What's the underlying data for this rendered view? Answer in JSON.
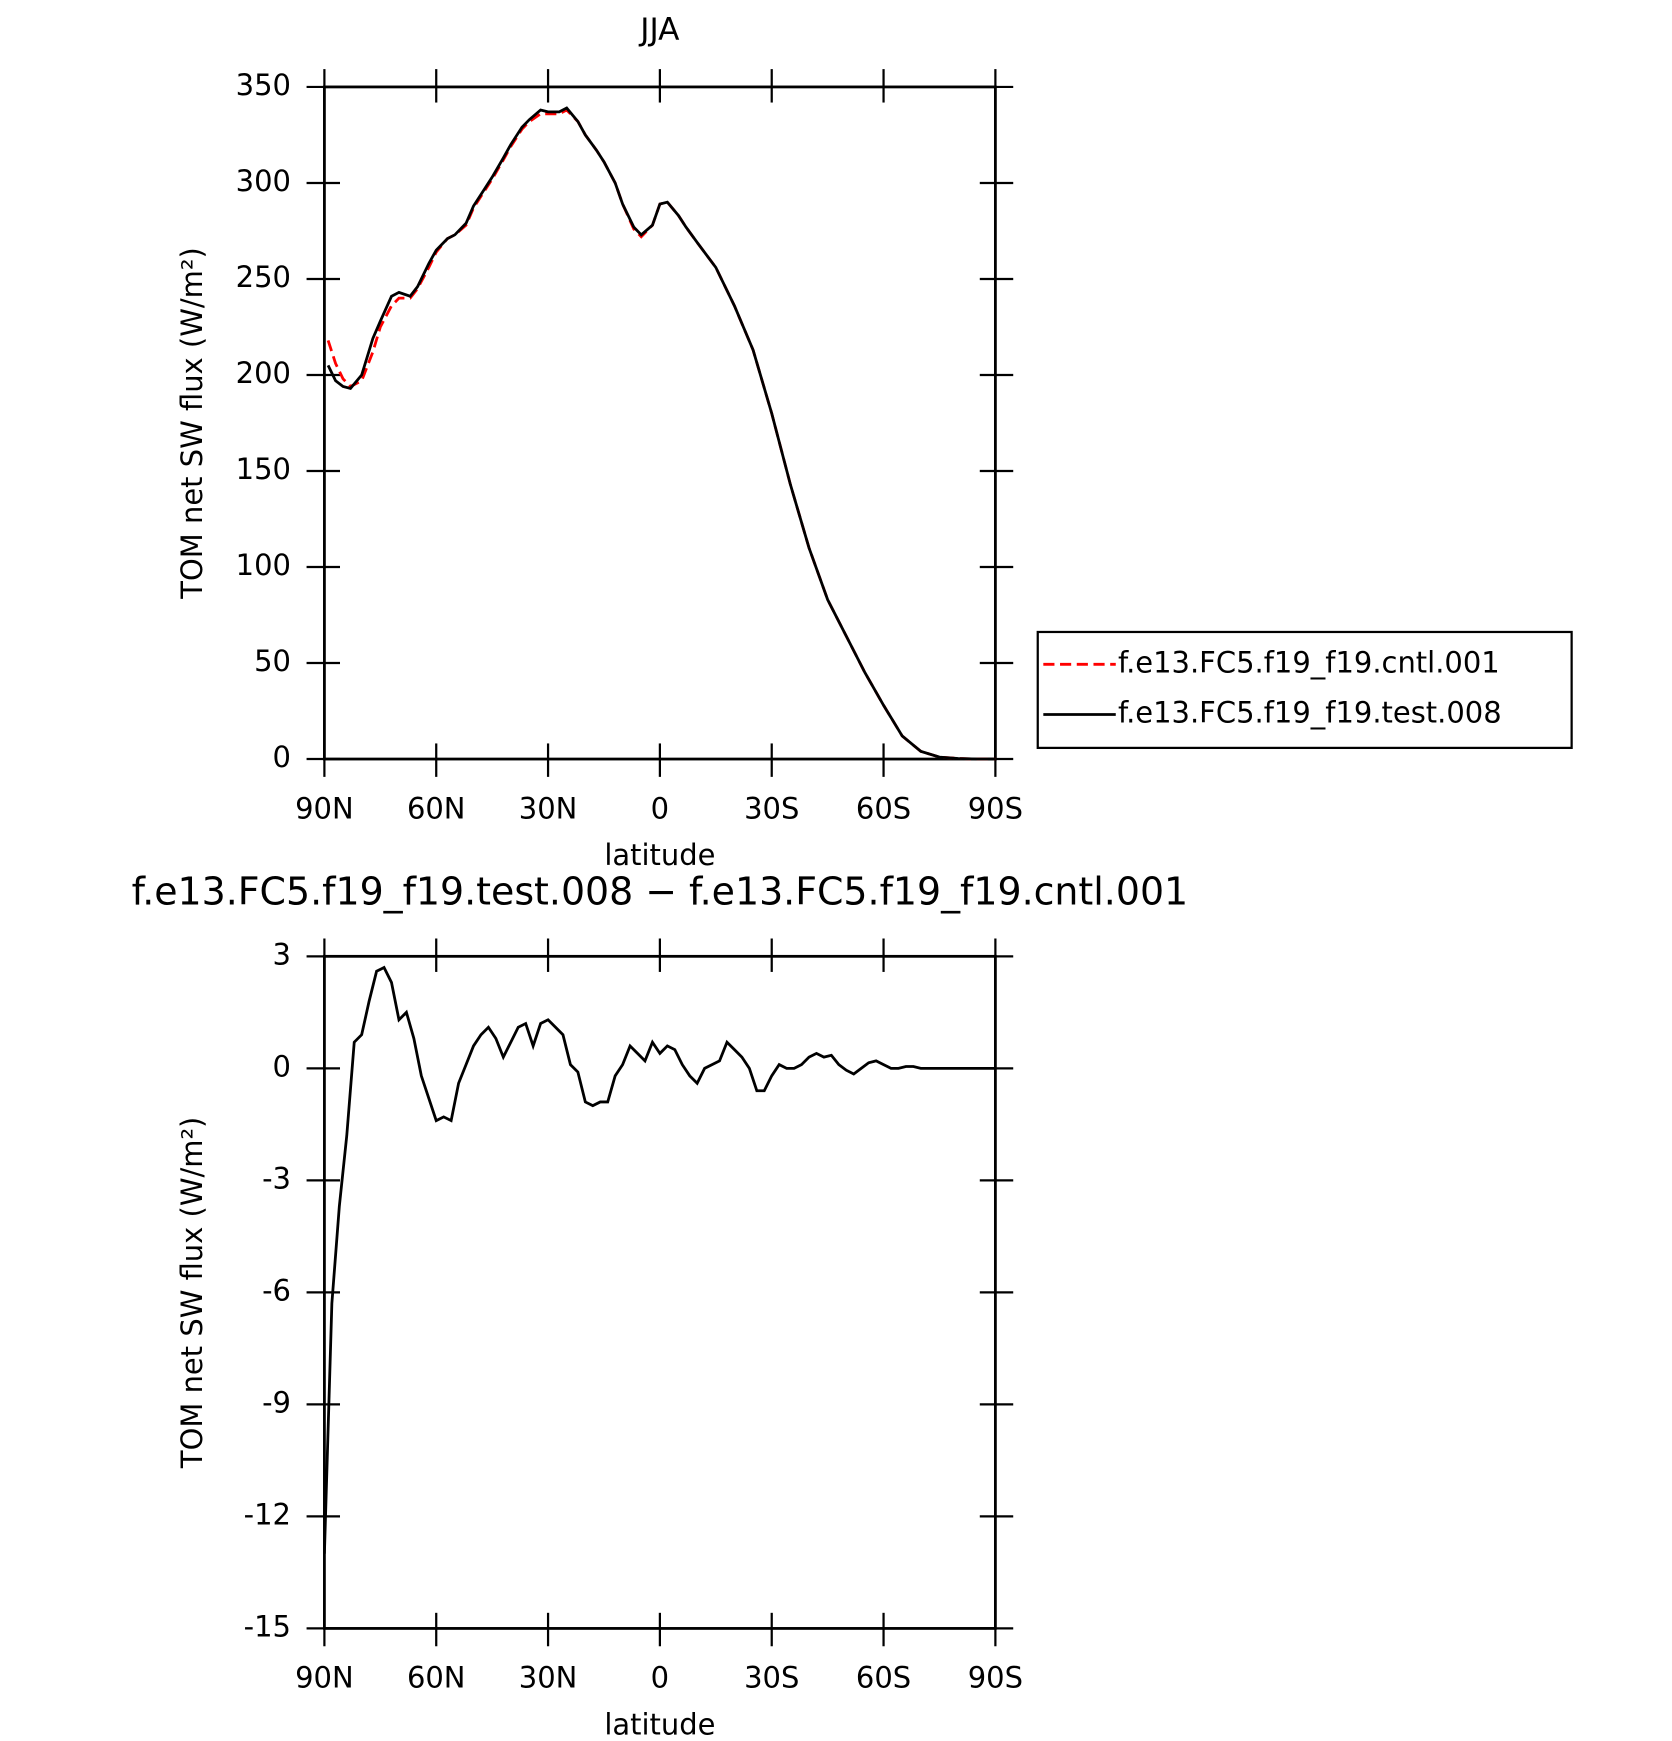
{
  "chart_data": [
    {
      "type": "line",
      "title": "JJA",
      "xlabel": "latitude",
      "ylabel": "TOM net SW flux (W/m²)",
      "x": [
        89,
        87,
        85,
        83,
        80,
        77,
        75,
        72,
        70,
        67,
        65,
        62,
        60,
        57,
        55,
        52,
        50,
        47,
        45,
        42,
        40,
        37,
        35,
        32,
        30,
        27,
        25,
        22,
        20,
        17,
        15,
        12,
        10,
        7,
        5,
        2,
        0,
        -2,
        -5,
        -7,
        -10,
        -15,
        -20,
        -25,
        -30,
        -35,
        -40,
        -45,
        -50,
        -55,
        -60,
        -65,
        -70,
        -75,
        -80,
        -85,
        -90
      ],
      "series": [
        {
          "name": "f.e13.FC5.f19_f19.cntl.001",
          "color": "#ff0000",
          "dash": "dashed",
          "values": [
            218,
            206,
            198,
            194,
            197,
            212,
            225,
            236,
            240,
            240,
            245,
            256,
            264,
            271,
            273,
            278,
            287,
            296,
            302,
            312,
            319,
            328,
            332,
            336,
            336,
            336,
            338,
            332,
            325,
            317,
            311,
            300,
            289,
            276,
            272,
            278,
            289,
            290,
            283,
            277,
            269,
            256,
            236,
            213,
            180,
            143,
            110,
            83,
            64,
            45,
            28,
            12,
            4,
            1,
            0.3,
            0,
            0
          ]
        },
        {
          "name": "f.e13.FC5.f19_f19.test.008",
          "color": "#000000",
          "dash": "solid",
          "values": [
            205,
            197,
            194,
            193,
            200,
            219,
            228,
            241,
            243,
            241,
            246,
            258,
            265,
            271,
            273,
            279,
            288,
            297,
            303,
            313,
            320,
            329,
            333,
            338,
            337,
            337,
            339,
            332,
            325,
            317,
            311,
            300,
            289,
            277,
            273,
            278,
            289,
            290,
            283,
            277,
            269,
            256,
            236,
            213,
            180,
            143,
            110,
            83,
            64,
            45,
            28,
            12,
            4,
            1,
            0.3,
            0,
            0
          ]
        }
      ],
      "xlim": [
        90,
        -90
      ],
      "xticks": [
        {
          "value": 90,
          "label": "90N"
        },
        {
          "value": 60,
          "label": "60N"
        },
        {
          "value": 30,
          "label": "30N"
        },
        0,
        {
          "value": -30,
          "label": "30S"
        },
        {
          "value": -60,
          "label": "60S"
        },
        {
          "value": -90,
          "label": "90S"
        }
      ],
      "ylim": [
        0,
        350
      ],
      "yticks": [
        0,
        50,
        100,
        150,
        200,
        250,
        300,
        350
      ],
      "legend": "right"
    },
    {
      "type": "line",
      "title": "f.e13.FC5.f19_f19.test.008 − f.e13.FC5.f19_f19.cntl.001",
      "xlabel": "latitude",
      "ylabel": "TOM net SW flux (W/m²)",
      "x": [
        90,
        88,
        86,
        84,
        82,
        80,
        78,
        76,
        74,
        72,
        70,
        68,
        66,
        64,
        62,
        60,
        58,
        56,
        54,
        52,
        50,
        48,
        46,
        44,
        42,
        40,
        38,
        36,
        34,
        32,
        30,
        28,
        26,
        24,
        22,
        20,
        18,
        16,
        14,
        12,
        10,
        8,
        6,
        4,
        2,
        0,
        -2,
        -4,
        -6,
        -8,
        -10,
        -12,
        -14,
        -16,
        -18,
        -20,
        -22,
        -24,
        -26,
        -28,
        -30,
        -32,
        -34,
        -36,
        -38,
        -40,
        -42,
        -44,
        -46,
        -48,
        -50,
        -52,
        -54,
        -56,
        -58,
        -60,
        -62,
        -64,
        -66,
        -68,
        -70,
        -75,
        -80,
        -85,
        -90
      ],
      "values": [
        -13,
        -6.3,
        -3.7,
        -1.8,
        0.7,
        0.9,
        1.8,
        2.6,
        2.7,
        2.3,
        1.3,
        1.5,
        0.8,
        -0.2,
        -0.8,
        -1.4,
        -1.3,
        -1.4,
        -0.4,
        0.1,
        0.6,
        0.9,
        1.1,
        0.8,
        0.3,
        0.7,
        1.1,
        1.2,
        0.6,
        1.2,
        1.3,
        1.1,
        0.9,
        0.1,
        -0.1,
        -0.9,
        -1,
        -0.9,
        -0.9,
        -0.2,
        0.1,
        0.6,
        0.4,
        0.2,
        0.7,
        0.4,
        0.6,
        0.5,
        0.1,
        -0.2,
        -0.4,
        0,
        0.1,
        0.2,
        0.7,
        0.5,
        0.3,
        0,
        -0.6,
        -0.6,
        -0.2,
        0.1,
        0,
        0,
        0.1,
        0.3,
        0.4,
        0.3,
        0.35,
        0.1,
        -0.05,
        -0.15,
        0,
        0.15,
        0.2,
        0.1,
        0,
        0,
        0.05,
        0.05,
        0,
        0,
        0,
        0,
        0
      ],
      "color": "#000000",
      "xlim": [
        90,
        -90
      ],
      "xticks": [
        {
          "value": 90,
          "label": "90N"
        },
        {
          "value": 60,
          "label": "60N"
        },
        {
          "value": 30,
          "label": "30N"
        },
        0,
        {
          "value": -30,
          "label": "30S"
        },
        {
          "value": -60,
          "label": "60S"
        },
        {
          "value": -90,
          "label": "90S"
        }
      ],
      "ylim": [
        -15,
        3
      ],
      "yticks": [
        -15,
        -12,
        -9,
        -6,
        -3,
        0,
        3
      ]
    }
  ]
}
